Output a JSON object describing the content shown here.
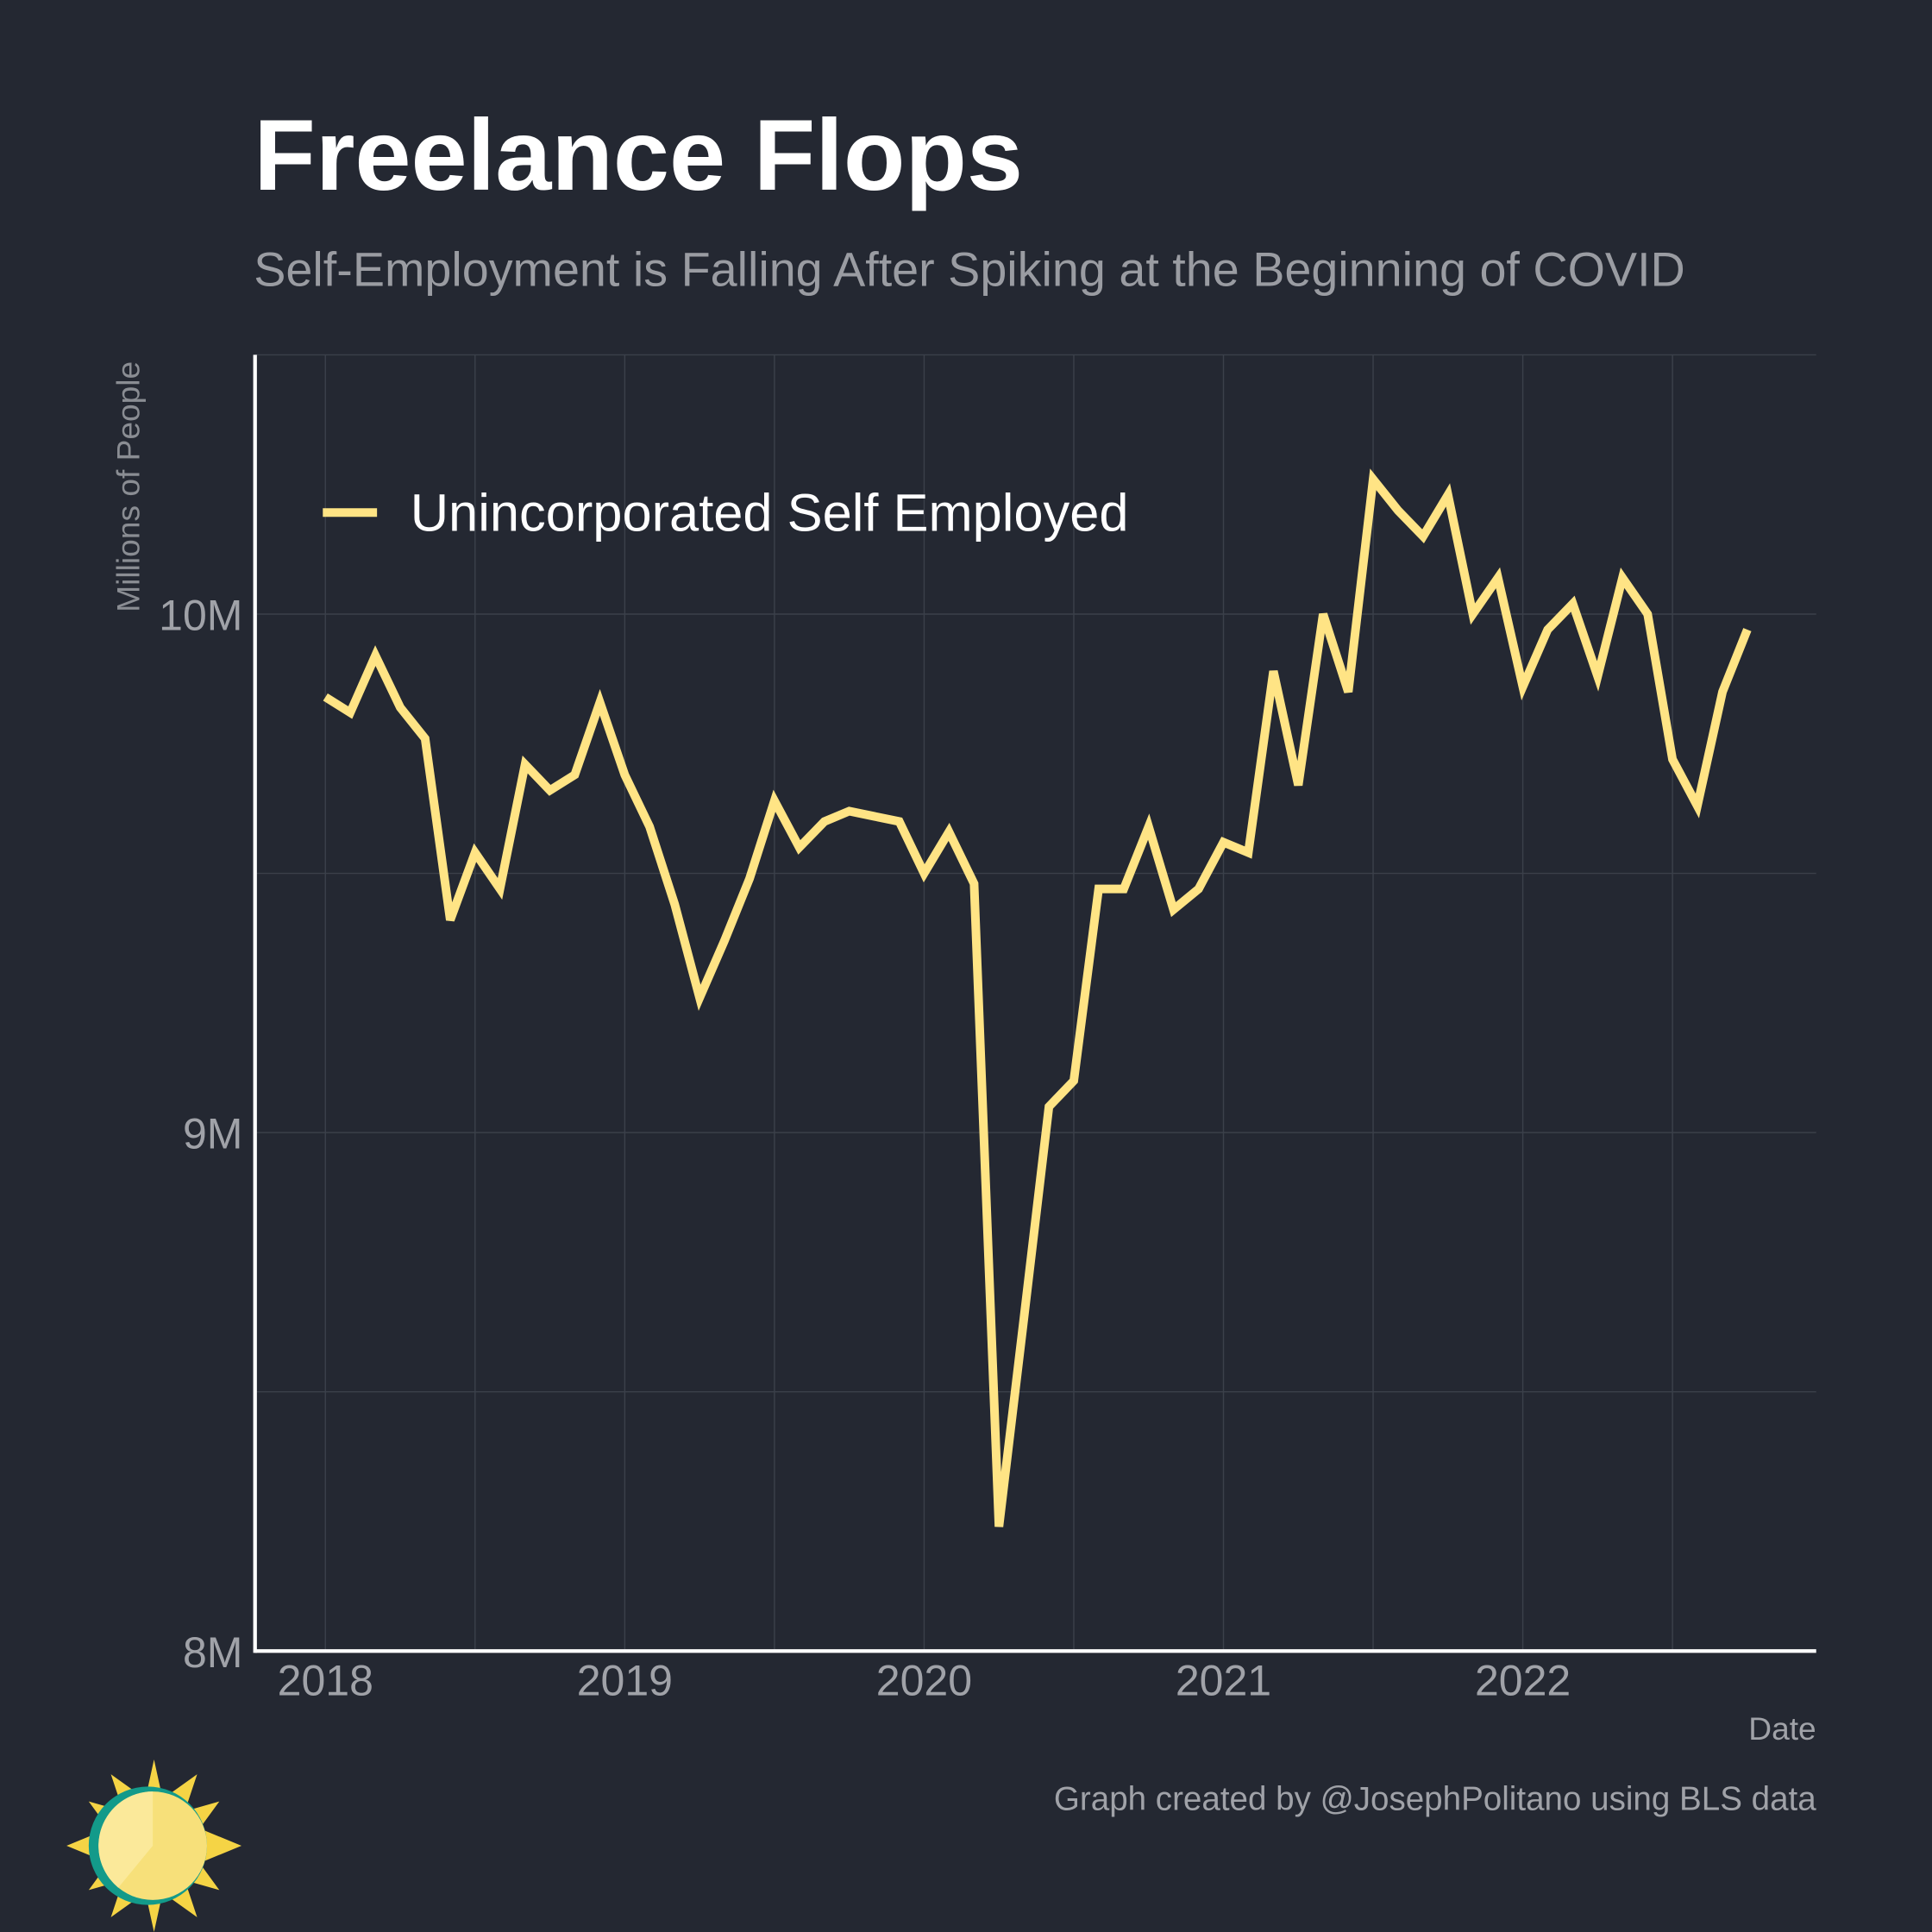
{
  "chart_data": {
    "type": "line",
    "title": "Freelance Flops",
    "subtitle": "Self-Employment is Falling After Spiking at the Beginning of COVID",
    "y_label": "Millions of People",
    "x_label": "Date",
    "caption": "Graph created by @JosephPolitano using BLS data",
    "x": [
      2018,
      2018.083,
      2018.167,
      2018.25,
      2018.333,
      2018.417,
      2018.5,
      2018.583,
      2018.667,
      2018.75,
      2018.833,
      2018.917,
      2019,
      2019.083,
      2019.167,
      2019.25,
      2019.333,
      2019.417,
      2019.5,
      2019.583,
      2019.667,
      2019.75,
      2019.833,
      2019.917,
      2020,
      2020.083,
      2020.167,
      2020.25,
      2020.333,
      2020.417,
      2020.5,
      2020.583,
      2020.667,
      2020.75,
      2020.833,
      2020.917,
      2021,
      2021.083,
      2021.167,
      2021.25,
      2021.333,
      2021.417,
      2021.5,
      2021.583,
      2021.667,
      2021.75,
      2021.833,
      2021.917,
      2022,
      2022.083,
      2022.167,
      2022.25,
      2022.333,
      2022.417,
      2022.5,
      2022.583,
      2022.667,
      2022.75
    ],
    "series": [
      {
        "name": "Unincorporated Self Employed",
        "color": "#ffe485",
        "values": [
          9.84,
          9.81,
          9.92,
          9.82,
          9.76,
          9.41,
          9.54,
          9.47,
          9.71,
          9.66,
          9.69,
          9.83,
          9.69,
          9.59,
          9.44,
          9.26,
          9.37,
          9.49,
          9.64,
          9.55,
          9.6,
          9.62,
          9.61,
          9.6,
          9.5,
          9.58,
          9.48,
          8.24,
          8.64,
          9.05,
          9.1,
          9.47,
          9.47,
          9.59,
          9.43,
          9.47,
          9.56,
          9.54,
          9.89,
          9.67,
          10.0,
          9.85,
          10.26,
          10.2,
          10.15,
          10.23,
          10.0,
          10.07,
          9.86,
          9.97,
          10.02,
          9.88,
          10.07,
          10.0,
          9.72,
          9.63,
          9.85,
          9.97
        ]
      }
    ],
    "xlim": [
      2017.765,
      2022.98
    ],
    "xticks": [
      2018,
      2019,
      2020,
      2021,
      2022
    ],
    "xminorticks": [
      2018.5,
      2019.5,
      2020.5,
      2021.5,
      2022.5
    ],
    "ylim": [
      8,
      10.5
    ],
    "yticks": [
      {
        "value": 8,
        "label": "8M"
      },
      {
        "value": 9,
        "label": "9M"
      },
      {
        "value": 10,
        "label": "10M"
      }
    ],
    "yminorticks": [
      8.5,
      9.5
    ],
    "grid": true,
    "legend": "top-left"
  }
}
